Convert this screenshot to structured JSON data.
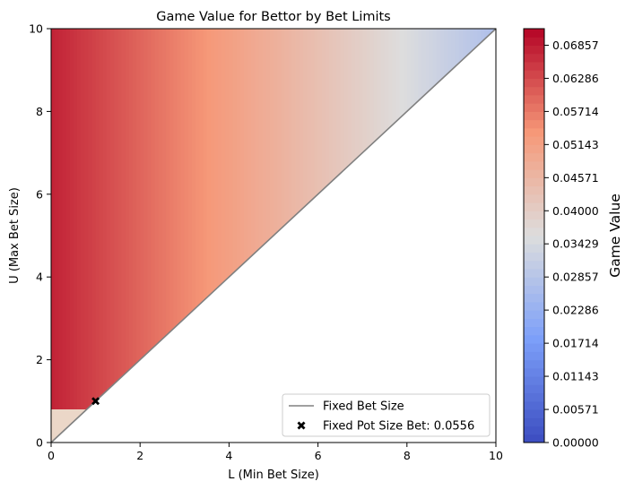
{
  "chart_data": {
    "type": "heatmap",
    "title": "Game Value for Bettor by Bet Limits",
    "xlabel": "L (Min Bet Size)",
    "ylabel": "U (Max Bet Size)",
    "xlim": [
      0,
      10
    ],
    "ylim": [
      0,
      10
    ],
    "x_ticks": [
      "0",
      "2",
      "4",
      "6",
      "8",
      "10"
    ],
    "y_ticks": [
      "0",
      "2",
      "4",
      "6",
      "8",
      "10"
    ],
    "grid": false,
    "region": "U >= L (upper-left triangle filled, lower-right blank)",
    "colormap": "coolwarm",
    "colorbar": {
      "label": "Game Value",
      "range": [
        0.0,
        0.07142857
      ],
      "ticks": [
        "0.00000",
        "0.00571",
        "0.01143",
        "0.01714",
        "0.02286",
        "0.02857",
        "0.03429",
        "0.04000",
        "0.04571",
        "0.05143",
        "0.05714",
        "0.06286",
        "0.06857"
      ]
    },
    "series": [
      {
        "name": "Fixed Bet Size",
        "kind": "line",
        "x": [
          0,
          10
        ],
        "y": [
          0,
          10
        ],
        "color": "#808080"
      },
      {
        "name": "Fixed Pot Size Bet: 0.0556",
        "kind": "marker",
        "x": [
          1
        ],
        "y": [
          1
        ],
        "color": "#000000"
      }
    ],
    "legend_position": "bottom-right"
  }
}
